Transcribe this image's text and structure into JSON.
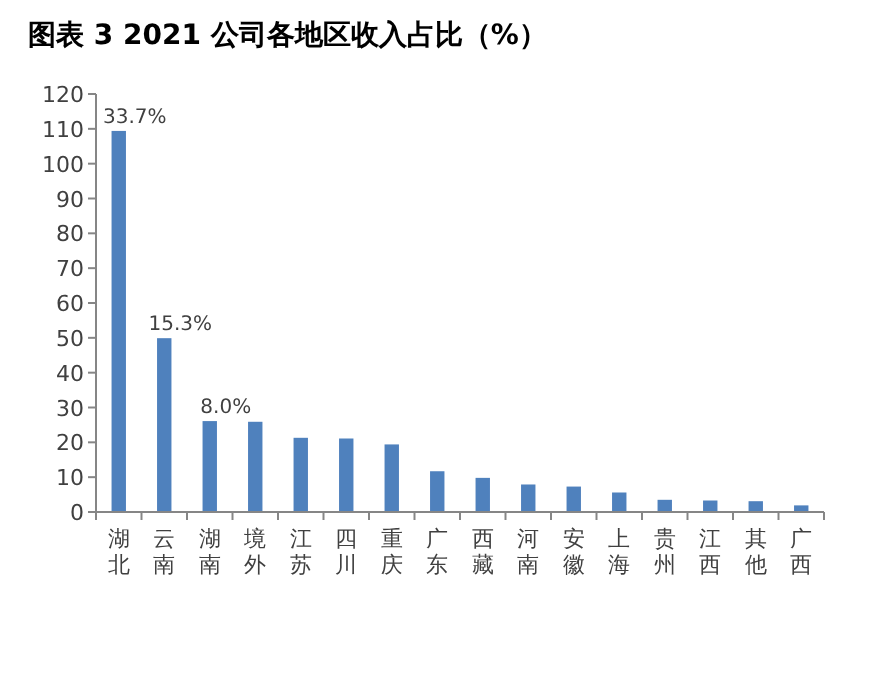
{
  "chart_data": {
    "type": "bar",
    "title": "图表 3 2021 公司各地区收入占比（%）",
    "categories": [
      "湖北",
      "云南",
      "湖南",
      "境外",
      "江苏",
      "四川",
      "重庆",
      "广东",
      "西藏",
      "河南",
      "安徽",
      "上海",
      "贵州",
      "江西",
      "其他",
      "广西"
    ],
    "values": [
      109.4,
      49.9,
      26.1,
      25.9,
      21.3,
      21.1,
      19.4,
      11.7,
      9.8,
      7.9,
      7.3,
      5.6,
      3.5,
      3.3,
      3.1,
      1.9
    ],
    "annotations": [
      {
        "text": "33.7%",
        "x": "湖北",
        "y": 109.4
      },
      {
        "text": "15.3%",
        "x": "云南",
        "y": 49.9
      },
      {
        "text": "8.0%",
        "x": "湖南",
        "y": 26.1
      }
    ],
    "color": "#4f81bd",
    "ylim": [
      0,
      120
    ],
    "yticks": [
      0,
      10,
      20,
      30,
      40,
      50,
      60,
      70,
      80,
      90,
      100,
      110,
      120
    ]
  }
}
